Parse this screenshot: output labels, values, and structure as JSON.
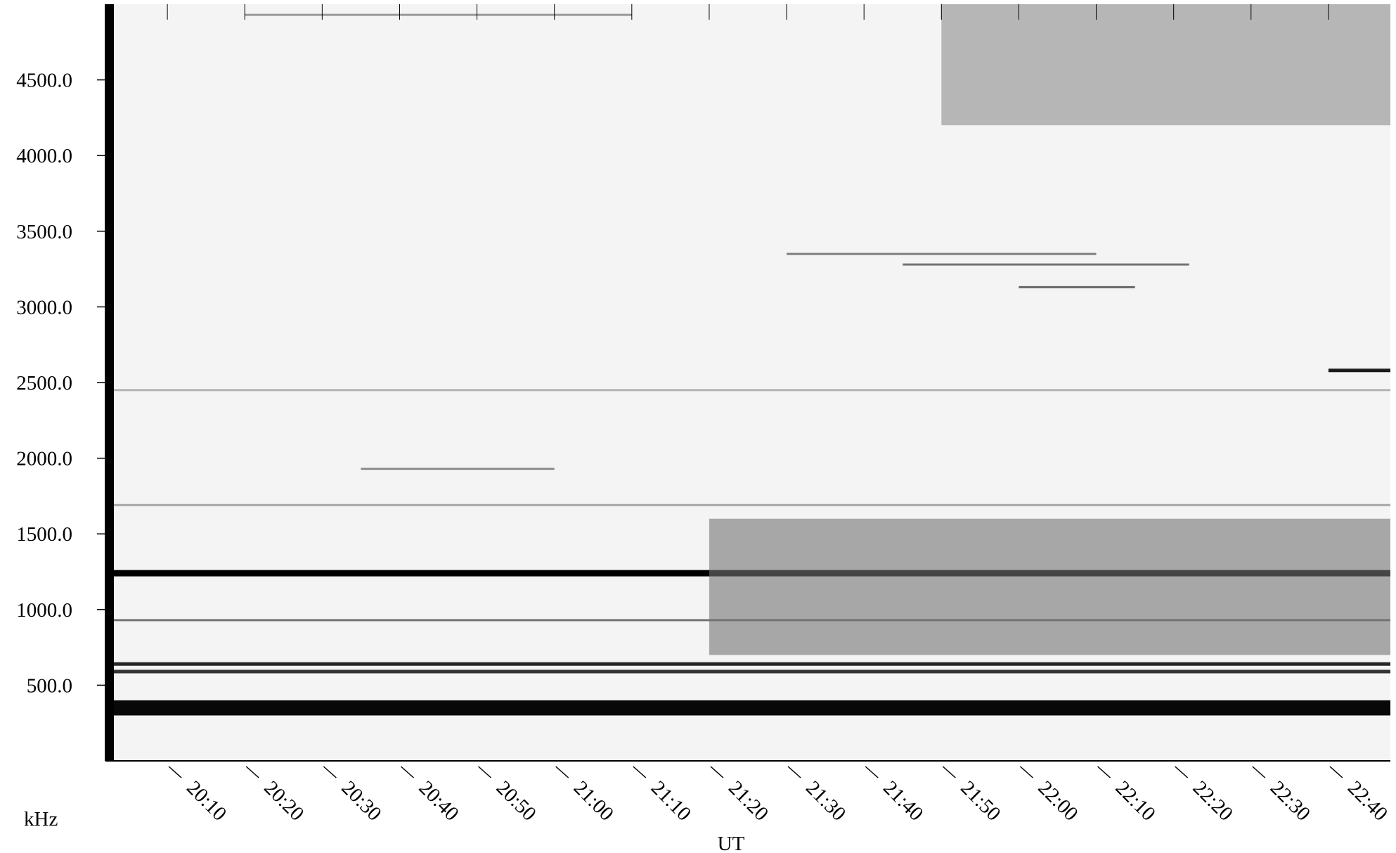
{
  "chart_data": {
    "type": "heatmap",
    "title": "",
    "xlabel": "UT",
    "ylabel": "kHz",
    "colormap": "grayscale (white = low intensity, black = high intensity)",
    "colors": {
      "background": "#ffffff",
      "low": "#f4f4f4",
      "high": "#000000"
    },
    "y_ticks": [
      "500.0",
      "1000.0",
      "1500.0",
      "2000.0",
      "2500.0",
      "3000.0",
      "3500.0",
      "4000.0",
      "4500.0"
    ],
    "x_ticks": [
      "20:10",
      "20:20",
      "20:30",
      "20:40",
      "20:50",
      "21:00",
      "21:10",
      "21:20",
      "21:30",
      "21:40",
      "21:50",
      "22:00",
      "22:10",
      "22:20",
      "22:30",
      "22:40"
    ],
    "ylim": [
      0,
      5000
    ],
    "xlim": [
      "20:02",
      "22:48"
    ],
    "grid": false,
    "legend": "none",
    "features": [
      {
        "name": "broad-band-emission-low",
        "kind": "band",
        "y_range": [
          300,
          400
        ],
        "x_range": [
          "20:02",
          "22:48"
        ],
        "intensity": 0.97
      },
      {
        "name": "strong-line-1240",
        "kind": "line",
        "y": 1240,
        "x_range": [
          "20:02",
          "22:48"
        ],
        "intensity": 1.0
      },
      {
        "name": "line-640",
        "kind": "line",
        "y": 640,
        "x_range": [
          "20:02",
          "22:48"
        ],
        "intensity": 0.85
      },
      {
        "name": "line-590",
        "kind": "line",
        "y": 590,
        "x_range": [
          "20:02",
          "22:48"
        ],
        "intensity": 0.8
      },
      {
        "name": "line-930",
        "kind": "line",
        "y": 930,
        "x_range": [
          "20:02",
          "22:48"
        ],
        "intensity": 0.55
      },
      {
        "name": "line-1690",
        "kind": "line",
        "y": 1690,
        "x_range": [
          "20:02",
          "22:48"
        ],
        "intensity": 0.35
      },
      {
        "name": "line-2450",
        "kind": "line",
        "y": 2450,
        "x_range": [
          "20:02",
          "22:48"
        ],
        "intensity": 0.3
      },
      {
        "name": "diffuse-emission-late",
        "kind": "region",
        "y_range": [
          700,
          1600
        ],
        "x_range": [
          "21:20",
          "22:48"
        ],
        "intensity": 0.55
      },
      {
        "name": "upper-emission-late",
        "kind": "region",
        "y_range": [
          4200,
          5000
        ],
        "x_range": [
          "21:50",
          "22:48"
        ],
        "intensity": 0.45
      },
      {
        "name": "feature-3350",
        "kind": "line",
        "y": 3350,
        "x_range": [
          "21:30",
          "22:10"
        ],
        "intensity": 0.5
      },
      {
        "name": "feature-3280",
        "kind": "line",
        "y": 3280,
        "x_range": [
          "21:45",
          "22:22"
        ],
        "intensity": 0.55
      },
      {
        "name": "feature-3130",
        "kind": "line",
        "y": 3130,
        "x_range": [
          "22:00",
          "22:15"
        ],
        "intensity": 0.6
      },
      {
        "name": "feature-2580",
        "kind": "line",
        "y": 2580,
        "x_range": [
          "22:40",
          "22:48"
        ],
        "intensity": 0.9
      },
      {
        "name": "feature-1930",
        "kind": "line",
        "y": 1930,
        "x_range": [
          "20:35",
          "21:00"
        ],
        "intensity": 0.45
      },
      {
        "name": "feature-4930",
        "kind": "line",
        "y": 4930,
        "x_range": [
          "20:20",
          "21:10"
        ],
        "intensity": 0.4
      }
    ]
  }
}
